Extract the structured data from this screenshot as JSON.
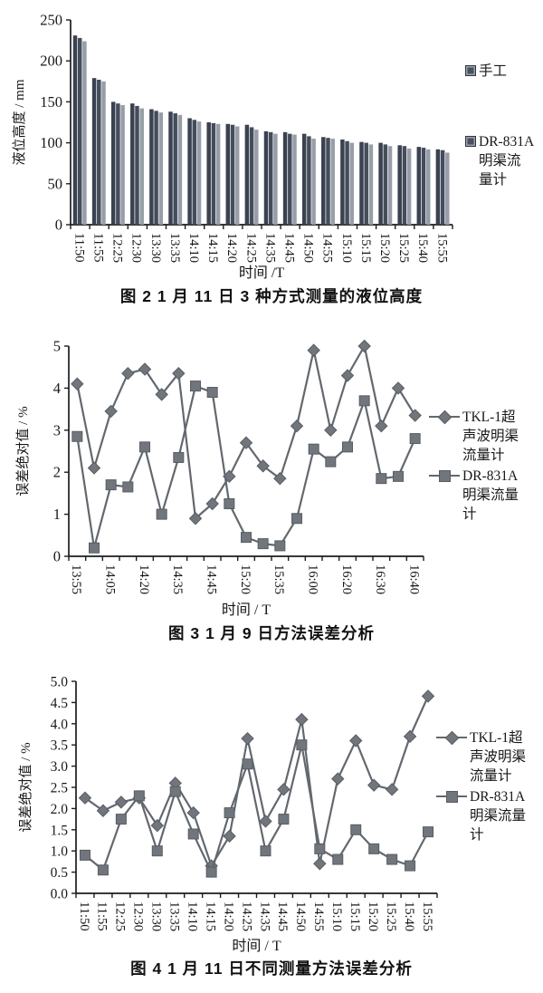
{
  "colors": {
    "axis": "#1c1d1f",
    "text": "#17181a",
    "bar_dark": "#3a4150",
    "bar_dark2": "#454d5b",
    "bar_light": "#979ea8",
    "line": "#63686e",
    "marker_fill": "#71767d",
    "marker_edge": "#585d64"
  },
  "chart_data": [
    {
      "type": "bar",
      "caption": "图 2  1 月 11 日 3 种方式测量的液位高度",
      "ylabel": "液位高度 / mm",
      "xlabel": "时间 /T",
      "ylim": [
        0,
        250
      ],
      "yticks": [
        "0",
        "50",
        "100",
        "150",
        "200",
        "250"
      ],
      "grid": false,
      "legend_position": "right",
      "categories": [
        "11:50",
        "11:55",
        "12:25",
        "12:30",
        "13:30",
        "13:35",
        "14:10",
        "14:15",
        "14:20",
        "14:25",
        "14:35",
        "14:45",
        "14:50",
        "14:55",
        "15:10",
        "15:15",
        "15:20",
        "15:25",
        "15:40",
        "15:55"
      ],
      "series": [
        {
          "name": "手工",
          "values": [
            231,
            179,
            150,
            148,
            141,
            138,
            130,
            125,
            123,
            122,
            114,
            113,
            111,
            107,
            104,
            101,
            100,
            97,
            95,
            92
          ]
        },
        {
          "name": "",
          "values": [
            228,
            177,
            148,
            145,
            139,
            136,
            128,
            124,
            122,
            119,
            113,
            111,
            108,
            106,
            102,
            100,
            98,
            96,
            94,
            91
          ]
        },
        {
          "name": "DR-831A明渠流量计",
          "values": [
            224,
            175,
            146,
            142,
            137,
            134,
            126,
            123,
            120,
            116,
            111,
            110,
            105,
            105,
            100,
            98,
            96,
            93,
            92,
            88
          ]
        }
      ],
      "legend": [
        {
          "label": "手工",
          "marker": "square-swatch"
        },
        {
          "label": "DR-831A\n明渠流\n量计",
          "marker": "square-swatch"
        }
      ]
    },
    {
      "type": "line",
      "caption": "图 3  1 月 9 日方法误差分析",
      "ylabel": "误差绝对值 / %",
      "xlabel": "时间 / T",
      "ylim": [
        0,
        5
      ],
      "yticks": [
        "0",
        "1",
        "2",
        "3",
        "4",
        "5"
      ],
      "grid": false,
      "legend_position": "right",
      "categories": [
        "13:55",
        "",
        "14:05",
        "",
        "14:20",
        "",
        "14:35",
        "",
        "14:45",
        "",
        "15:20",
        "",
        "15:35",
        "",
        "16:00",
        "",
        "16:20",
        "",
        "16:30",
        "",
        "16:40"
      ],
      "series": [
        {
          "name": "TKL-1超声波明渠流量计",
          "marker": "diamond",
          "values": [
            4.1,
            2.1,
            3.45,
            4.35,
            4.45,
            3.85,
            4.35,
            0.9,
            1.25,
            1.9,
            2.7,
            2.15,
            1.85,
            3.1,
            4.9,
            3.0,
            4.3,
            5.0,
            3.1,
            4.0,
            3.35
          ]
        },
        {
          "name": "DR-831A明渠流量计",
          "marker": "square",
          "values": [
            2.85,
            0.2,
            1.7,
            1.65,
            2.6,
            1.0,
            2.35,
            4.05,
            3.9,
            1.25,
            0.45,
            0.3,
            0.25,
            0.9,
            2.55,
            2.25,
            2.6,
            3.7,
            1.85,
            1.9,
            2.8
          ]
        }
      ],
      "legend": [
        {
          "label": "TKL-1超\n声波明渠\n流量计",
          "marker": "diamond"
        },
        {
          "label": "DR-831A\n明渠流量\n计",
          "marker": "square"
        }
      ]
    },
    {
      "type": "line",
      "caption": "图 4  1 月 11 日不同测量方法误差分析",
      "ylabel": "误差绝对值 / %",
      "xlabel": "时间 / T",
      "ylim": [
        0,
        5
      ],
      "yticks": [
        "0.0",
        "0.5",
        "1.0",
        "1.5",
        "2.0",
        "2.5",
        "3.0",
        "3.5",
        "4.0",
        "4.5",
        "5.0"
      ],
      "grid": false,
      "legend_position": "right",
      "categories": [
        "11:50",
        "11:55",
        "12:25",
        "12:30",
        "13:30",
        "13:35",
        "14:10",
        "14:15",
        "14:20",
        "14:25",
        "14:35",
        "14:45",
        "14:50",
        "14:55",
        "15:10",
        "15:15",
        "15:20",
        "15:25",
        "15:40",
        "15:55"
      ],
      "series": [
        {
          "name": "TKL-1超声波明渠流量计",
          "marker": "diamond",
          "values": [
            2.25,
            1.95,
            2.15,
            2.25,
            1.6,
            2.6,
            1.9,
            0.65,
            1.35,
            3.65,
            1.7,
            2.45,
            4.1,
            0.7,
            2.7,
            3.6,
            2.55,
            2.45,
            3.7,
            4.65
          ]
        },
        {
          "name": "DR-831A明渠流量计",
          "marker": "square",
          "values": [
            0.9,
            0.55,
            1.75,
            2.3,
            1.0,
            2.4,
            1.4,
            0.5,
            1.9,
            3.05,
            1.0,
            1.75,
            3.5,
            1.05,
            0.8,
            1.5,
            1.05,
            0.8,
            0.65,
            1.45
          ]
        }
      ],
      "legend": [
        {
          "label": "TKL-1超\n声波明渠\n流量计",
          "marker": "diamond"
        },
        {
          "label": "DR-831A\n明渠流量\n计",
          "marker": "square"
        }
      ]
    }
  ]
}
